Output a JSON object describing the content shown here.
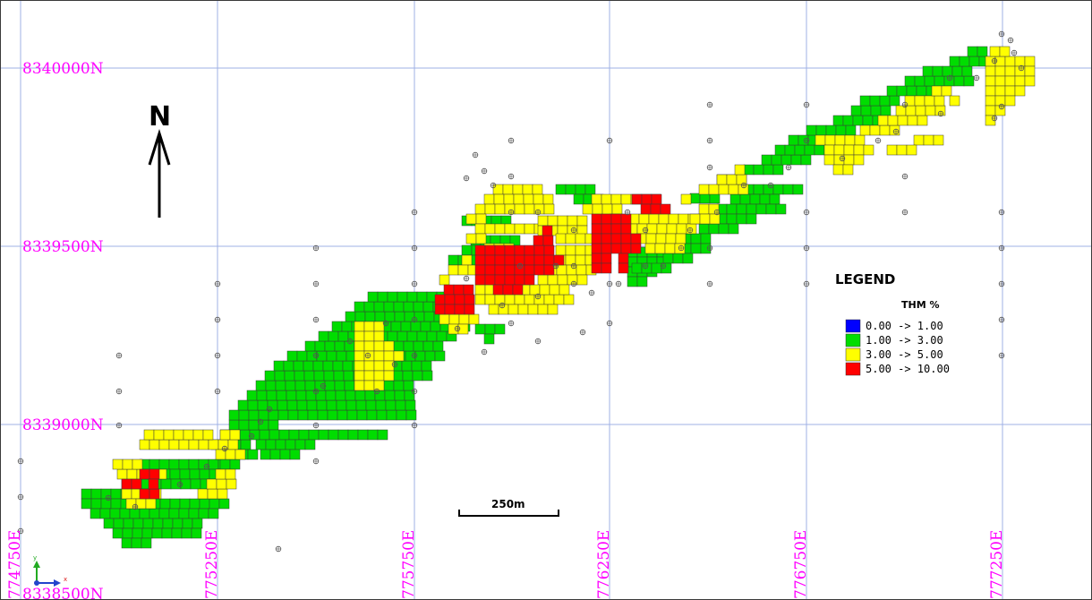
{
  "map": {
    "northings": [
      {
        "label": "8340000N"
      },
      {
        "label": "8339500N"
      },
      {
        "label": "8339000N"
      },
      {
        "label": "8338500N"
      }
    ],
    "eastings": [
      {
        "label": "774750E"
      },
      {
        "label": "775250E"
      },
      {
        "label": "775750E"
      },
      {
        "label": "776250E"
      },
      {
        "label": "776750E"
      },
      {
        "label": "777250E"
      }
    ],
    "north_arrow": {
      "label": "N"
    },
    "scale_bar": {
      "label": "250m"
    },
    "axis_triad": {
      "x_label": "x",
      "y_label": "y"
    }
  },
  "legend": {
    "title": "LEGEND",
    "subtitle": "THM %",
    "items": [
      {
        "range": "0.00 -> 1.00",
        "color": "#0000ff"
      },
      {
        "range": "1.00 -> 3.00",
        "color": "#00dd00"
      },
      {
        "range": "3.00 -> 5.00",
        "color": "#ffff00"
      },
      {
        "range": "5.00 -> 10.00",
        "color": "#ff0000"
      }
    ]
  },
  "colors": {
    "grid": "#9fb0e6",
    "coord_label": "#ff00ff",
    "green": "#00dd00",
    "yellow": "#ffff00",
    "red": "#ff0000"
  },
  "grade_zones": {
    "green_zone": "1.00 -> 3.00",
    "yellow_zone": "3.00 -> 5.00",
    "red_zone": "5.00 -> 10.00"
  }
}
